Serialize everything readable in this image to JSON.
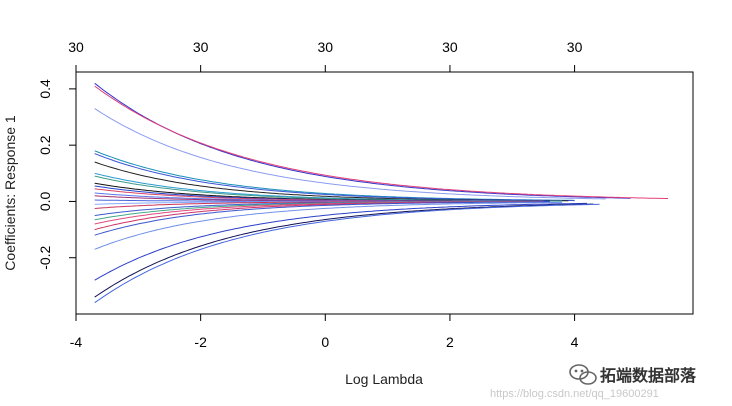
{
  "chart_data": {
    "type": "line",
    "xlabel": "Log Lambda",
    "ylabel": "Coefficients: Response 1",
    "xlim": [
      -4.0,
      5.9
    ],
    "ylim": [
      -0.4,
      0.46
    ],
    "x_ticks": [
      "-4",
      "-2",
      "0",
      "2",
      "4"
    ],
    "x_tick_values": [
      -4,
      -2,
      0,
      2,
      4
    ],
    "y_ticks": [
      "-0.2",
      "0.0",
      "0.2",
      "0.4"
    ],
    "y_tick_values": [
      -0.2,
      0.0,
      0.2,
      0.4
    ],
    "top_axis_labels": [
      "30",
      "30",
      "30",
      "30",
      "30"
    ],
    "top_axis_values": [
      -4,
      -2,
      0,
      2,
      4
    ],
    "series": [
      {
        "color": "#3333cc",
        "start_x": -3.7,
        "start_y": 0.42,
        "end_x": 4.9,
        "decay": 0.42
      },
      {
        "color": "#e0407a",
        "start_x": -3.7,
        "start_y": 0.41,
        "end_x": 5.5,
        "decay": 0.4
      },
      {
        "color": "#8a9cf0",
        "start_x": -3.7,
        "start_y": 0.33,
        "end_x": 4.5,
        "decay": 0.44
      },
      {
        "color": "#1a8fb8",
        "start_x": -3.7,
        "start_y": 0.18,
        "end_x": 4.0,
        "decay": 0.5
      },
      {
        "color": "#3a55d8",
        "start_x": -3.7,
        "start_y": 0.17,
        "end_x": 4.0,
        "decay": 0.52
      },
      {
        "color": "#222222",
        "start_x": -3.7,
        "start_y": 0.14,
        "end_x": 3.9,
        "decay": 0.55
      },
      {
        "color": "#2a9ad0",
        "start_x": -3.7,
        "start_y": 0.1,
        "end_x": 3.8,
        "decay": 0.56
      },
      {
        "color": "#3f9a8a",
        "start_x": -3.7,
        "start_y": 0.09,
        "end_x": 3.8,
        "decay": 0.58
      },
      {
        "color": "#111111",
        "start_x": -3.7,
        "start_y": 0.065,
        "end_x": 3.6,
        "decay": 0.6
      },
      {
        "color": "#2244cc",
        "start_x": -3.7,
        "start_y": 0.055,
        "end_x": 3.6,
        "decay": 0.62
      },
      {
        "color": "#d94466",
        "start_x": -3.7,
        "start_y": 0.045,
        "end_x": 3.5,
        "decay": 0.62
      },
      {
        "color": "#5577ee",
        "start_x": -3.7,
        "start_y": 0.03,
        "end_x": 3.5,
        "decay": 0.65
      },
      {
        "color": "#a03070",
        "start_x": -3.7,
        "start_y": 0.02,
        "end_x": 3.4,
        "decay": 0.66
      },
      {
        "color": "#4a66dd",
        "start_x": -3.7,
        "start_y": 0.005,
        "end_x": 3.4,
        "decay": 0.68
      },
      {
        "color": "#88aaff",
        "start_x": -3.7,
        "start_y": -0.01,
        "end_x": 3.3,
        "decay": 0.7
      },
      {
        "color": "#cc3355",
        "start_x": -3.7,
        "start_y": -0.025,
        "end_x": 3.3,
        "decay": 0.7
      },
      {
        "color": "#3a5ad0",
        "start_x": -3.7,
        "start_y": -0.05,
        "end_x": 3.3,
        "decay": 0.66
      },
      {
        "color": "#44aa88",
        "start_x": -3.7,
        "start_y": -0.065,
        "end_x": 3.4,
        "decay": 0.64
      },
      {
        "color": "#e04a80",
        "start_x": -3.7,
        "start_y": -0.08,
        "end_x": 3.4,
        "decay": 0.62
      },
      {
        "color": "#cc3366",
        "start_x": -3.7,
        "start_y": -0.1,
        "end_x": 3.5,
        "decay": 0.6
      },
      {
        "color": "#3a55cc",
        "start_x": -3.7,
        "start_y": -0.12,
        "end_x": 3.6,
        "decay": 0.58
      },
      {
        "color": "#7090e8",
        "start_x": -3.7,
        "start_y": -0.17,
        "end_x": 3.8,
        "decay": 0.52
      },
      {
        "color": "#2a3fc8",
        "start_x": -3.7,
        "start_y": -0.28,
        "end_x": 4.2,
        "decay": 0.47
      },
      {
        "color": "#111155",
        "start_x": -3.7,
        "start_y": -0.34,
        "end_x": 4.3,
        "decay": 0.45
      },
      {
        "color": "#4466e0",
        "start_x": -3.7,
        "start_y": -0.36,
        "end_x": 4.4,
        "decay": 0.44
      }
    ]
  },
  "watermark": {
    "logo": "wechat-logo",
    "text": "拓端数据部落",
    "url": "https://blog.csdn.net/qq_19600291"
  }
}
